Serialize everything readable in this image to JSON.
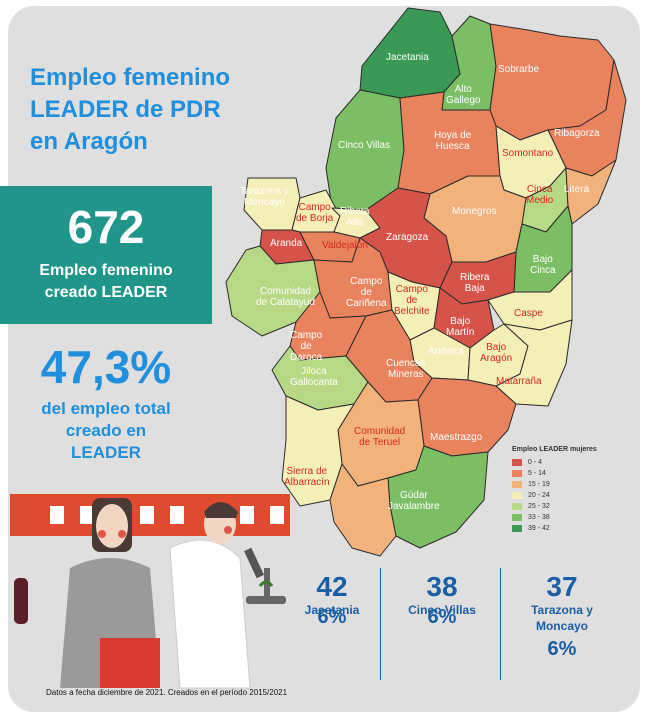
{
  "title": {
    "line1": "Empleo femenino",
    "line2": "LEADER de PDR",
    "line3": "en Aragón"
  },
  "headline": {
    "value": "672",
    "label_line1": "Empleo femenino",
    "label_line2": "creado LEADER"
  },
  "share": {
    "value": "47,3%",
    "line1": "del empleo total",
    "line2": "creado en",
    "line3": "LEADER"
  },
  "legend": {
    "title": "Empleo LEADER mujeres",
    "items": [
      {
        "range": "0 - 4",
        "color": "#d65349"
      },
      {
        "range": "5 - 14",
        "color": "#e9835d"
      },
      {
        "range": "15 - 19",
        "color": "#f2b27b"
      },
      {
        "range": "20 - 24",
        "color": "#f4eeb7"
      },
      {
        "range": "25 - 32",
        "color": "#b7d985"
      },
      {
        "range": "33 - 38",
        "color": "#7cbe63"
      },
      {
        "range": "39 - 42",
        "color": "#3a9a55"
      }
    ]
  },
  "regions": [
    {
      "name": "Jacetania",
      "cls": "w"
    },
    {
      "name": "Alto Gallego",
      "line1": "Alto",
      "line2": "Gallego",
      "cls": "w"
    },
    {
      "name": "Sobrarbe",
      "cls": "w"
    },
    {
      "name": "Cinco Villas",
      "cls": "w"
    },
    {
      "name": "Hoya de Huesca",
      "line1": "Hoya de",
      "line2": "Huesca",
      "cls": "w"
    },
    {
      "name": "Somontano",
      "cls": "r"
    },
    {
      "name": "Ribagorza",
      "cls": "w"
    },
    {
      "name": "Tarazona y Moncayo",
      "line1": "Tarazona y",
      "line2": "Moncayo",
      "cls": "w"
    },
    {
      "name": "Campo de Borja",
      "line1": "Campo",
      "line2": "de Borja",
      "cls": "r"
    },
    {
      "name": "Ribera Alta",
      "line1": "Ribera",
      "line2": "Alta",
      "cls": "w"
    },
    {
      "name": "Cinca Medio",
      "line1": "Cinca",
      "line2": "Medio",
      "cls": "r"
    },
    {
      "name": "Litera",
      "cls": "w"
    },
    {
      "name": "Monegros",
      "cls": "w"
    },
    {
      "name": "Aranda",
      "cls": "w"
    },
    {
      "name": "Valdejalón",
      "cls": "r"
    },
    {
      "name": "Zaragoza",
      "cls": "w"
    },
    {
      "name": "Bajo Cinca",
      "line1": "Bajo",
      "line2": "Cinca",
      "cls": "w"
    },
    {
      "name": "Campo de Cariñena",
      "line1": "Campo",
      "line2": "de",
      "line3": "Cariñena",
      "cls": "w"
    },
    {
      "name": "Campo de Belchite",
      "line1": "Campo",
      "line2": "de",
      "line3": "Belchite",
      "cls": "r"
    },
    {
      "name": "Ribera Baja",
      "line1": "Ribera",
      "line2": "Baja",
      "cls": "w"
    },
    {
      "name": "Comunidad de Calatayud",
      "line1": "Comunidad",
      "line2": "de Calatayud",
      "cls": "w"
    },
    {
      "name": "Caspe",
      "cls": "r"
    },
    {
      "name": "Bajo Martín",
      "line1": "Bajo",
      "line2": "Martín",
      "cls": "w"
    },
    {
      "name": "Campo de Daroca",
      "line1": "Campo",
      "line2": "de",
      "line3": "Daroca",
      "cls": "w"
    },
    {
      "name": "Andorra",
      "cls": "w"
    },
    {
      "name": "Bajo Aragón",
      "line1": "Bajo",
      "line2": "Aragón",
      "cls": "r"
    },
    {
      "name": "Cuencas Mineras",
      "line1": "Cuencas",
      "line2": "Mineras",
      "cls": "w"
    },
    {
      "name": "Jiloca Gallocanta",
      "line1": "Jiloca",
      "line2": "Gallocanta",
      "cls": "w"
    },
    {
      "name": "Matarraña",
      "cls": "r"
    },
    {
      "name": "Comunidad de Teruel",
      "line1": "Comunidad",
      "line2": "de Teruel",
      "cls": "r"
    },
    {
      "name": "Maestrazgo",
      "cls": "w"
    },
    {
      "name": "Sierra de Albarracín",
      "line1": "Sierra de",
      "line2": "Albarracín",
      "cls": "r"
    },
    {
      "name": "Gúdar Javalambre",
      "line1": "Gúdar",
      "line2": "Javalambre",
      "cls": "w"
    }
  ],
  "stats": [
    {
      "value": "42",
      "name_line1": "Jacetania",
      "name_line2": "",
      "pct": "6%"
    },
    {
      "value": "38",
      "name_line1": "Cinco Villas",
      "name_line2": "",
      "pct": "6%"
    },
    {
      "value": "37",
      "name_line1": "Tarazona y",
      "name_line2": "Moncayo",
      "pct": "6%"
    }
  ],
  "footer": "Datos a fecha diciembre de 2021. Creados en el período 2015/2021"
}
